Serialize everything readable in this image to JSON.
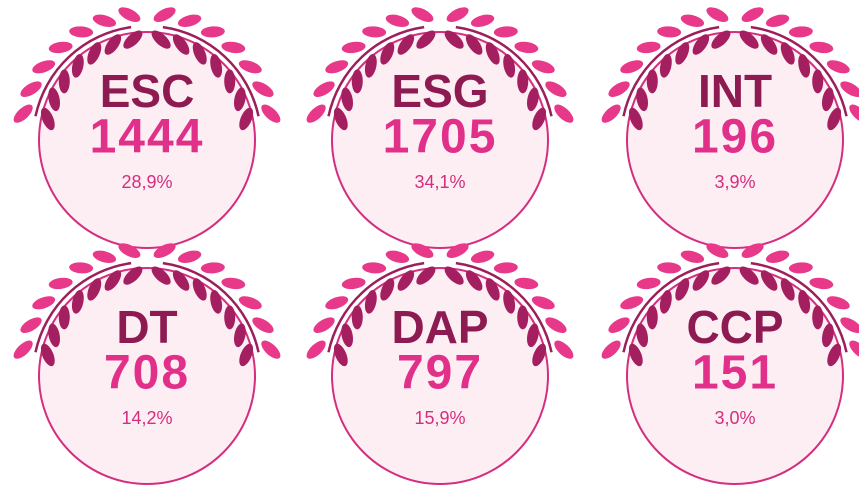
{
  "badges": [
    {
      "code": "ESC",
      "count": 1444,
      "percent": "28,9%"
    },
    {
      "code": "ESG",
      "count": 1705,
      "percent": "34,1%"
    },
    {
      "code": "INT",
      "count": 196,
      "percent": "3,9%"
    },
    {
      "code": "DT",
      "count": 708,
      "percent": "14,2%"
    },
    {
      "code": "DAP",
      "count": 797,
      "percent": "15,9%"
    },
    {
      "code": "CCP",
      "count": 151,
      "percent": "3,0%"
    }
  ]
}
